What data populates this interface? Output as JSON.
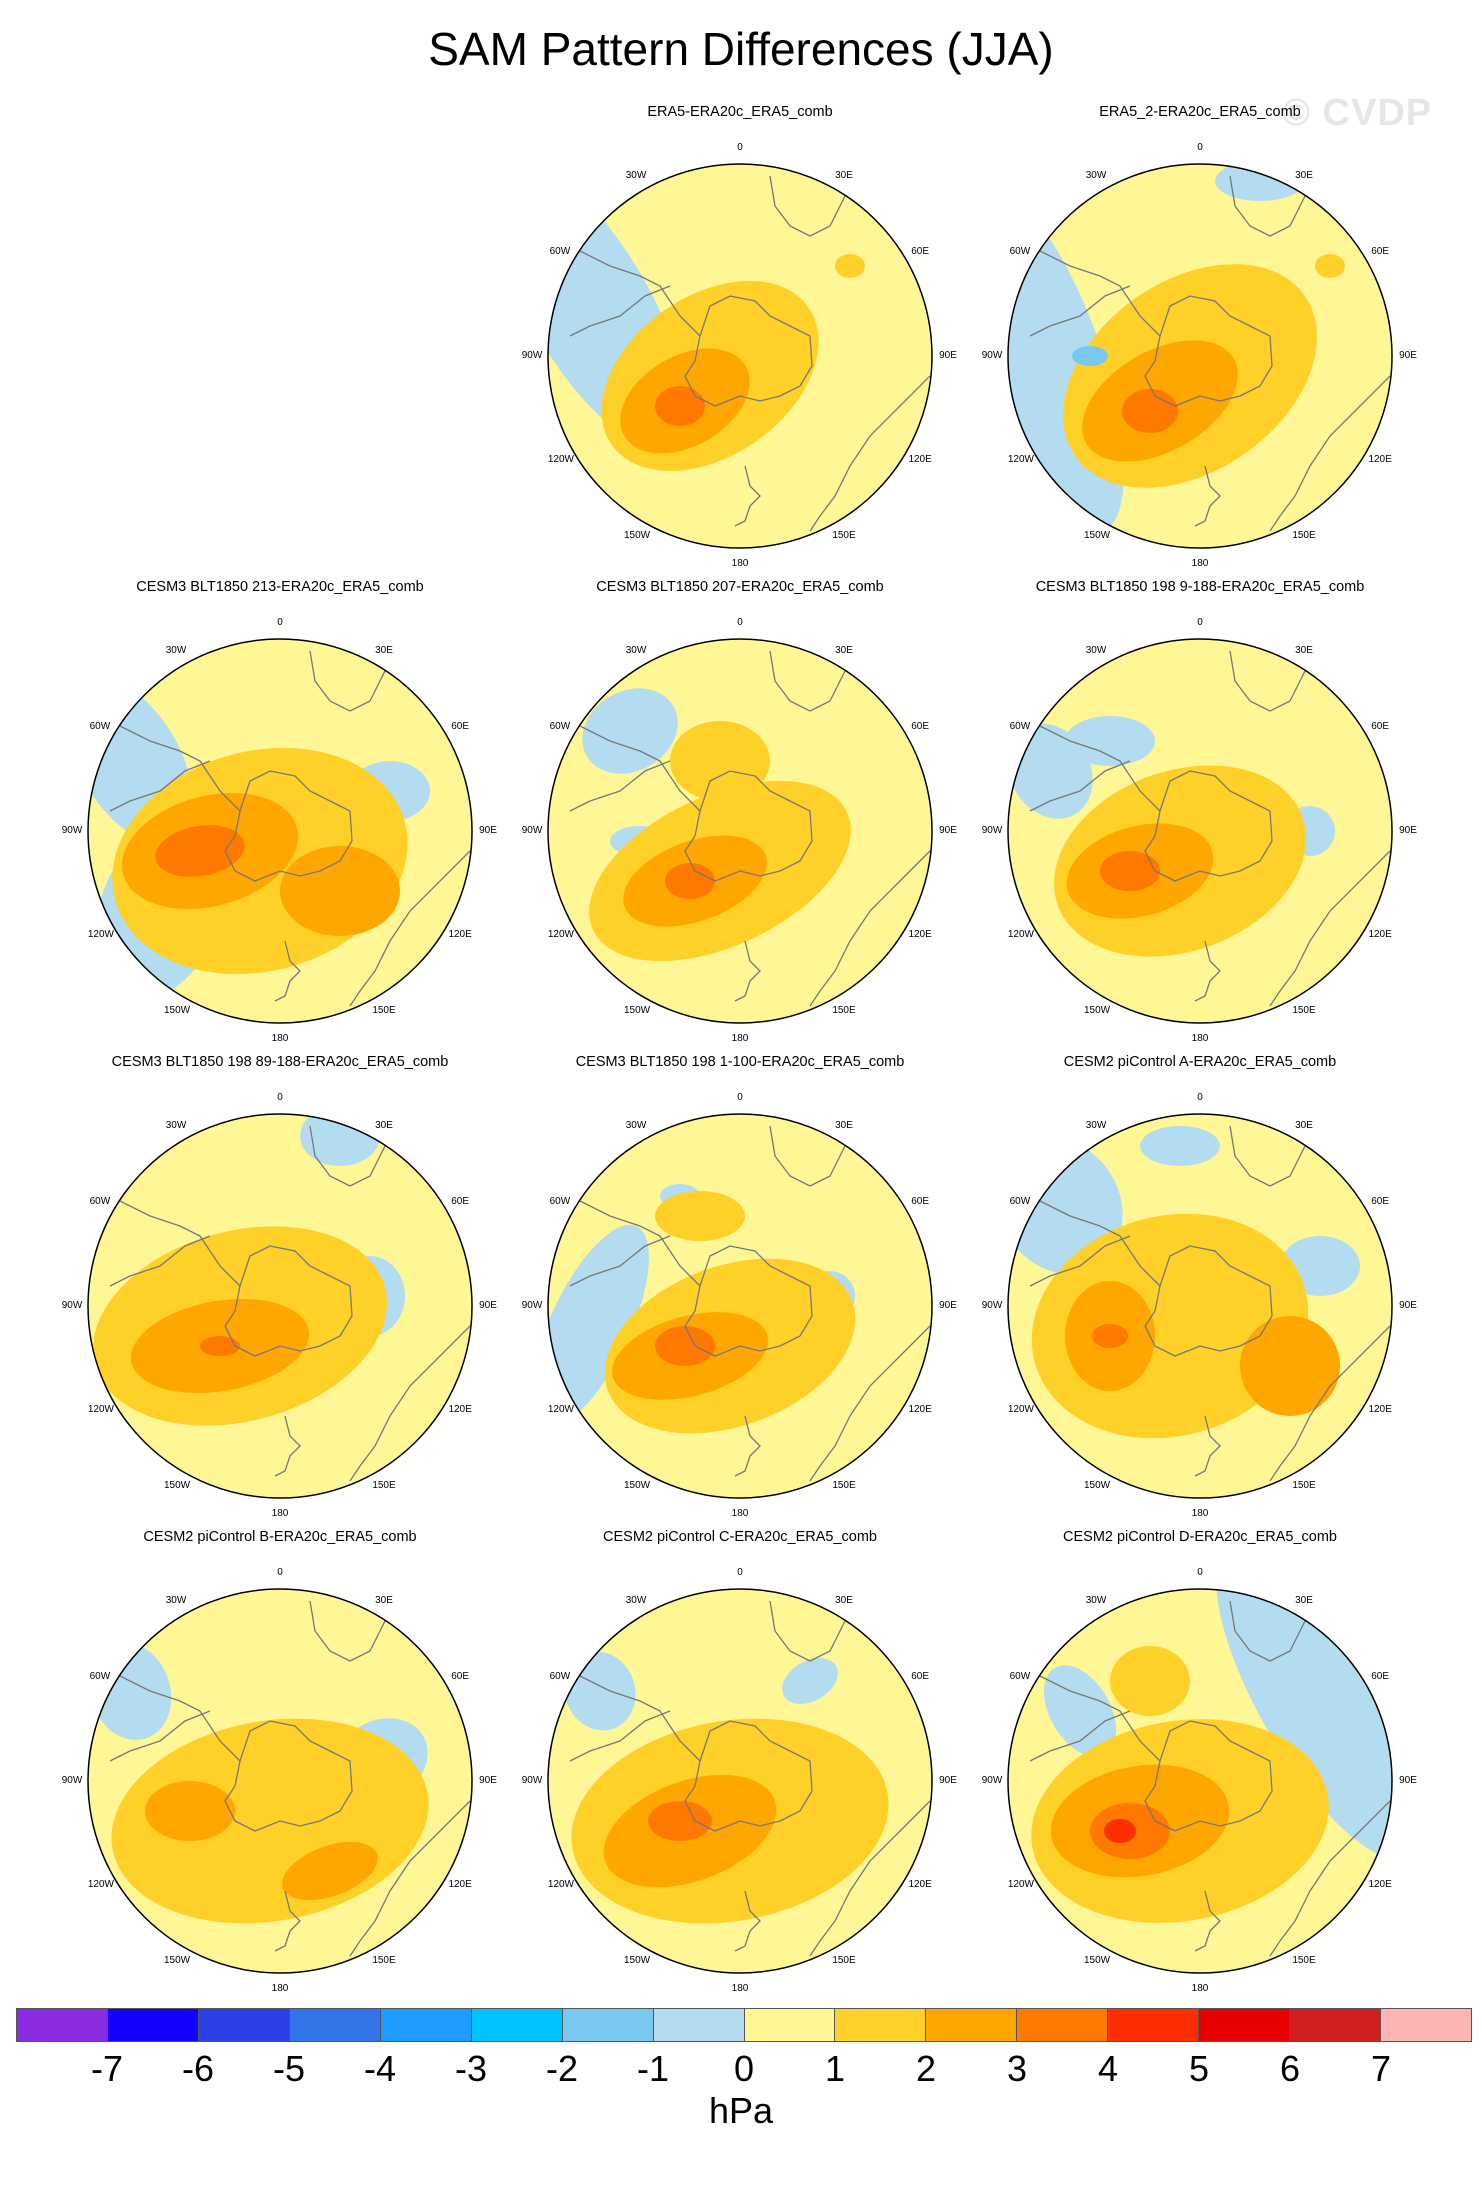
{
  "title": "SAM Pattern Differences (JJA)",
  "watermark": "© CVDP",
  "lon_labels": [
    "0",
    "30E",
    "60E",
    "90E",
    "120E",
    "150E",
    "180",
    "150W",
    "120W",
    "90W",
    "60W",
    "30W"
  ],
  "panels": [
    {
      "title": "ERA5-ERA20c_ERA5_comb"
    },
    {
      "title": "ERA5_2-ERA20c_ERA5_comb"
    },
    {
      "title": "CESM3 BLT1850 213-ERA20c_ERA5_comb"
    },
    {
      "title": "CESM3 BLT1850 207-ERA20c_ERA5_comb"
    },
    {
      "title": "CESM3 BLT1850 198 9-188-ERA20c_ERA5_comb"
    },
    {
      "title": "CESM3 BLT1850 198 89-188-ERA20c_ERA5_comb"
    },
    {
      "title": "CESM3 BLT1850 198 1-100-ERA20c_ERA5_comb"
    },
    {
      "title": "CESM2 piControl A-ERA20c_ERA5_comb"
    },
    {
      "title": "CESM2 piControl B-ERA20c_ERA5_comb"
    },
    {
      "title": "CESM2 piControl C-ERA20c_ERA5_comb"
    },
    {
      "title": "CESM2 piControl D-ERA20c_ERA5_comb"
    }
  ],
  "colorbar": {
    "colors": [
      "#8a2be2",
      "#1400ff",
      "#2a3fe6",
      "#3275e8",
      "#1e9bff",
      "#00c3ff",
      "#78c8f0",
      "#b4dcf0",
      "#fff796",
      "#ffd028",
      "#ffa600",
      "#ff7800",
      "#ff2e00",
      "#e60000",
      "#d21e1e",
      "#ffb4b4"
    ],
    "tick_labels": [
      "-7",
      "-6",
      "-5",
      "-4",
      "-3",
      "-2",
      "-1",
      "0",
      "1",
      "2",
      "3",
      "4",
      "5",
      "6",
      "7"
    ],
    "units": "hPa"
  }
}
